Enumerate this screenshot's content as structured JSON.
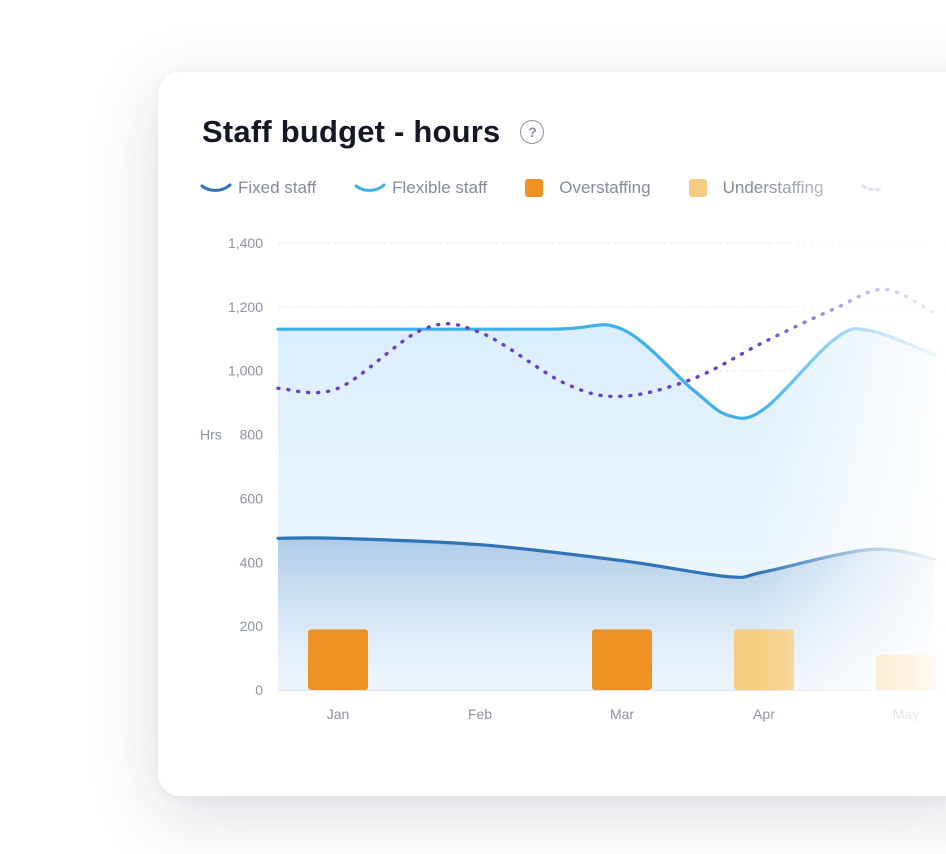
{
  "card": {
    "title": "Staff budget - hours",
    "help_icon": "?"
  },
  "legend": {
    "fixed": "Fixed staff",
    "flexible": "Flexible staff",
    "over": "Overstaffing",
    "under": "Understaffing"
  },
  "colors": {
    "fixed": "#2f74b8",
    "flexible": "#3fb0ec",
    "over": "#ee9226",
    "under": "#f6cc80",
    "demand": "#6a3fc4"
  },
  "chart_data": {
    "type": "line",
    "ylabel": "Hrs",
    "ylim": [
      0,
      1400
    ],
    "yticks": [
      "0",
      "200",
      "400",
      "600",
      "800",
      "1,000",
      "1,200",
      "1,400"
    ],
    "ytick_values": [
      0,
      200,
      400,
      600,
      800,
      1000,
      1200,
      1400
    ],
    "grid": true,
    "categories": [
      "Jan",
      "Feb",
      "Mar",
      "Apr",
      "May"
    ],
    "series": [
      {
        "name": "Fixed staff",
        "type": "area",
        "x": [
          0,
          1,
          2,
          2.75,
          3,
          3.75,
          4.2
        ],
        "values": [
          475,
          455,
          405,
          355,
          370,
          440,
          410
        ]
      },
      {
        "name": "Flexible staff",
        "type": "area",
        "x": [
          0,
          1.5,
          2,
          2.5,
          2.75,
          3,
          3.5,
          3.75,
          4.2
        ],
        "values": [
          1130,
          1130,
          1130,
          940,
          860,
          880,
          1100,
          1125,
          1050
        ]
      },
      {
        "name": "Overstaffing",
        "type": "bar",
        "values": [
          190,
          0,
          190,
          0,
          0
        ]
      },
      {
        "name": "Understaffing",
        "type": "bar",
        "values": [
          0,
          0,
          0,
          190,
          110
        ]
      },
      {
        "type": "line",
        "style": "dotted",
        "x": [
          0,
          0.6,
          1.0,
          1.6,
          2.0,
          2.5,
          3.0,
          3.5,
          3.85,
          4.2
        ],
        "values": [
          945,
          1130,
          1120,
          960,
          920,
          975,
          1090,
          1195,
          1255,
          1180
        ]
      }
    ]
  }
}
